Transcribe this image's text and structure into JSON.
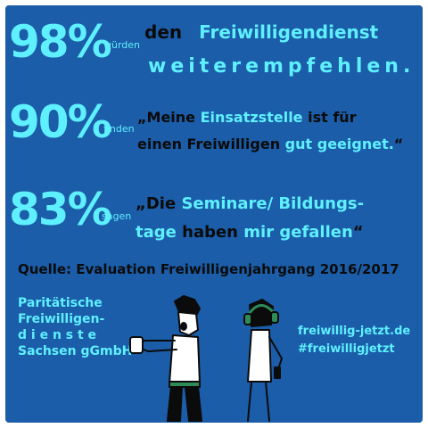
{
  "stat1": {
    "percent": "98%",
    "verb": "würden",
    "line1_a": "den",
    "line1_b": "Freiwilligendienst",
    "line2": "weiterempfehlen."
  },
  "stat2": {
    "percent": "90%",
    "verb": "finden",
    "line1_a": "„Meine",
    "line1_b": "Einsatzstelle",
    "line1_c": "ist für",
    "line2_a": "einen Freiwilligen",
    "line2_b": "gut geeignet.",
    "line2_c": "“"
  },
  "stat3": {
    "percent": "83%",
    "verb": "sagen",
    "line1_a": "„Die",
    "line1_b": "Seminare/ Bildungs-",
    "line2_a": "tage",
    "line2_b": "haben",
    "line2_c": "mir gefallen",
    "line2_d": "“"
  },
  "source": "Quelle: Evaluation Freiwilligenjahrgang 2016/2017",
  "org": {
    "line1": "Paritätische",
    "line2": "Freiwilligen-",
    "line3": "d i e n s t e",
    "line4": "Sachsen gGmbH"
  },
  "website": "freiwillig-jetzt.de",
  "hashtag": "#freiwilligjetzt",
  "colors": {
    "background": "#1b5da8",
    "accent": "#5ff0ff",
    "text_dark": "#0b0b0b",
    "border": "#ffffff"
  }
}
